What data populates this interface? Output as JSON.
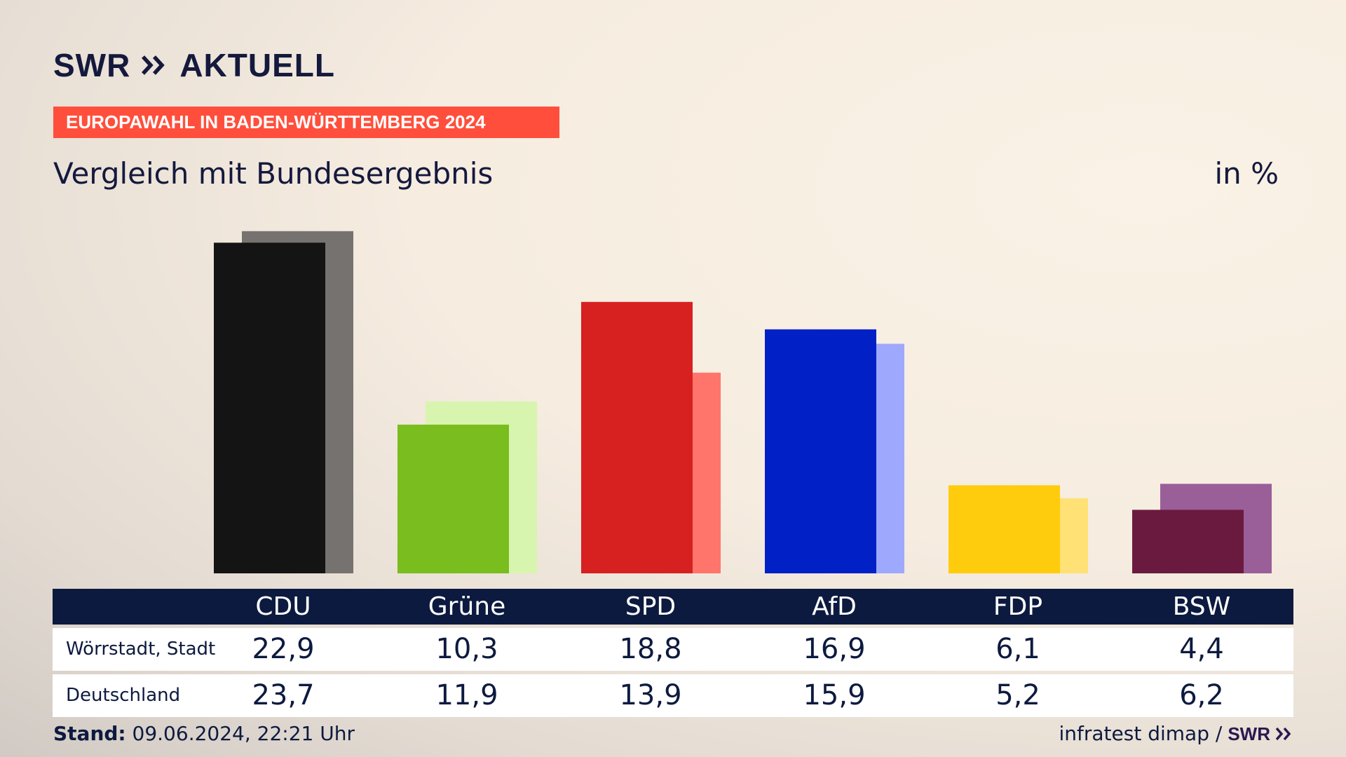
{
  "brand": {
    "logo_text": "SWR",
    "product": "AKTUELL",
    "chevron_color": "#14193d"
  },
  "banner": {
    "text": "EUROPAWAHL IN BADEN-WÜRTTEMBERG 2024",
    "color": "#ff4f3c"
  },
  "subtitle": "Vergleich mit Bundesergebnis",
  "unit": "in %",
  "chart_data": {
    "type": "bar",
    "title": "Vergleich mit Bundesergebnis",
    "unit": "in %",
    "categories": [
      "CDU",
      "Grüne",
      "SPD",
      "AfD",
      "FDP",
      "BSW"
    ],
    "series": [
      {
        "name": "Wörrstadt, Stadt",
        "values": [
          22.9,
          10.3,
          18.8,
          16.9,
          6.1,
          4.4
        ],
        "colors": [
          "#141414",
          "#79bd1e",
          "#d72020",
          "#0121c7",
          "#ffcc0d",
          "#6b1a3f"
        ]
      },
      {
        "name": "Deutschland",
        "values": [
          23.7,
          11.9,
          13.9,
          15.9,
          5.2,
          6.2
        ],
        "colors": [
          "#757270",
          "#d7f5ae",
          "#ff756b",
          "#9ea9fd",
          "#ffe176",
          "#9a5f99"
        ]
      }
    ],
    "grid": false,
    "legend": "table"
  },
  "table": {
    "rows": [
      {
        "label": "Wörrstadt, Stadt",
        "values": [
          "22,9",
          "10,3",
          "18,8",
          "16,9",
          "6,1",
          "4,4"
        ]
      },
      {
        "label": "Deutschland",
        "values": [
          "23,7",
          "11,9",
          "13,9",
          "15,9",
          "5,2",
          "6,2"
        ]
      }
    ]
  },
  "footer": {
    "stand_label": "Stand:",
    "stand_value": "09.06.2024, 22:21 Uhr",
    "source": "infratest dimap /",
    "source_logo": "SWR"
  }
}
